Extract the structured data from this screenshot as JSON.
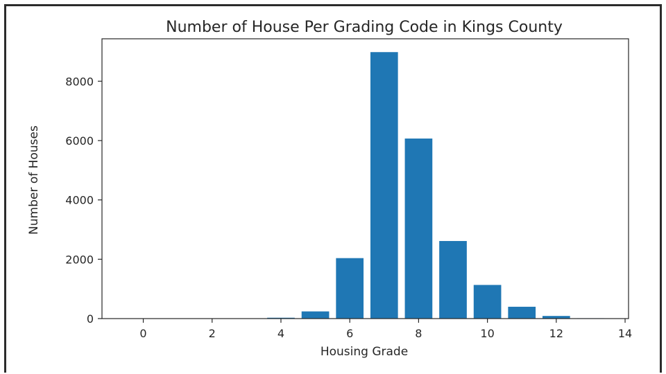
{
  "chart_data": {
    "type": "bar",
    "title": "Number of House Per Grading Code in Kings County",
    "xlabel": "Housing Grade",
    "ylabel": "Number of Houses",
    "x": [
      1,
      3,
      4,
      5,
      6,
      7,
      8,
      9,
      10,
      11,
      12,
      13
    ],
    "values": [
      1,
      3,
      29,
      242,
      2038,
      8981,
      6068,
      2615,
      1134,
      399,
      89,
      13
    ],
    "xlim": [
      -1.2,
      14.1
    ],
    "ylim": [
      0,
      9430
    ],
    "xticks": [
      "0",
      "2",
      "4",
      "6",
      "8",
      "10",
      "12",
      "14"
    ],
    "yticks": [
      "0",
      "2000",
      "4000",
      "6000",
      "8000"
    ],
    "bar_color": "#1f77b4",
    "grid": false
  }
}
